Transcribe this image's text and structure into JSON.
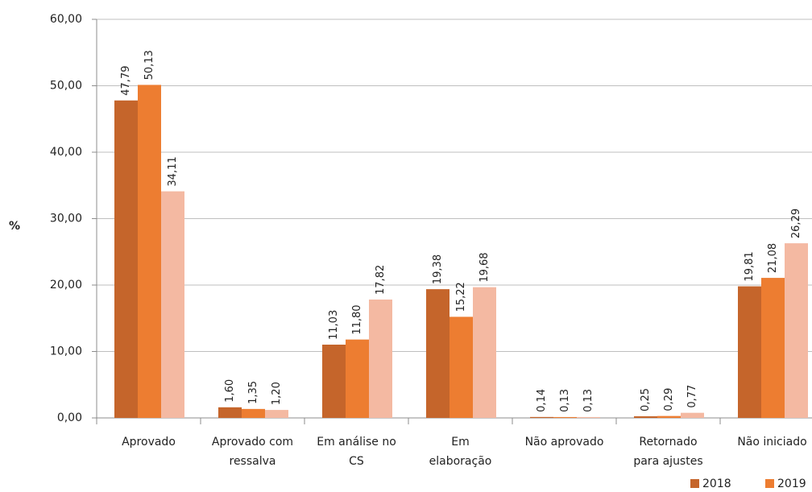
{
  "chart_data": {
    "type": "bar",
    "y_label": "%",
    "categories": [
      "Aprovado",
      "Aprovado com\nressalva",
      "Em análise no\nCS",
      "Em\nelaboração",
      "Não aprovado",
      "Retornado\npara ajustes",
      "Não iniciado"
    ],
    "series": [
      {
        "name": "2018",
        "color": "#c5652b",
        "values": [
          47.79,
          1.6,
          11.03,
          19.38,
          0.14,
          0.25,
          19.81
        ],
        "value_labels": [
          "47,79",
          "1,60",
          "11,03",
          "19,38",
          "0,14",
          "0,25",
          "19,81"
        ]
      },
      {
        "name": "2019",
        "color": "#ed7d31",
        "values": [
          50.13,
          1.35,
          11.8,
          15.22,
          0.13,
          0.29,
          21.08
        ],
        "value_labels": [
          "50,13",
          "1,35",
          "11,80",
          "15,22",
          "0,13",
          "0,29",
          "21,08"
        ]
      },
      {
        "color": "#f4b9a2",
        "values": [
          34.11,
          1.2,
          17.82,
          19.68,
          0.13,
          0.77,
          26.29
        ],
        "value_labels": [
          "34,11",
          "1,20",
          "17,82",
          "19,68",
          "0,13",
          "0,77",
          "26,29"
        ]
      }
    ],
    "ylim": [
      0,
      60
    ],
    "yticks": [
      {
        "value": 0,
        "label": "0,00"
      },
      {
        "value": 10,
        "label": "10,00"
      },
      {
        "value": 20,
        "label": "20,00"
      },
      {
        "value": 30,
        "label": "30,00"
      },
      {
        "value": 40,
        "label": "40,00"
      },
      {
        "value": 50,
        "label": "50,00"
      },
      {
        "value": 60,
        "label": "60,00"
      }
    ],
    "grid": true
  }
}
